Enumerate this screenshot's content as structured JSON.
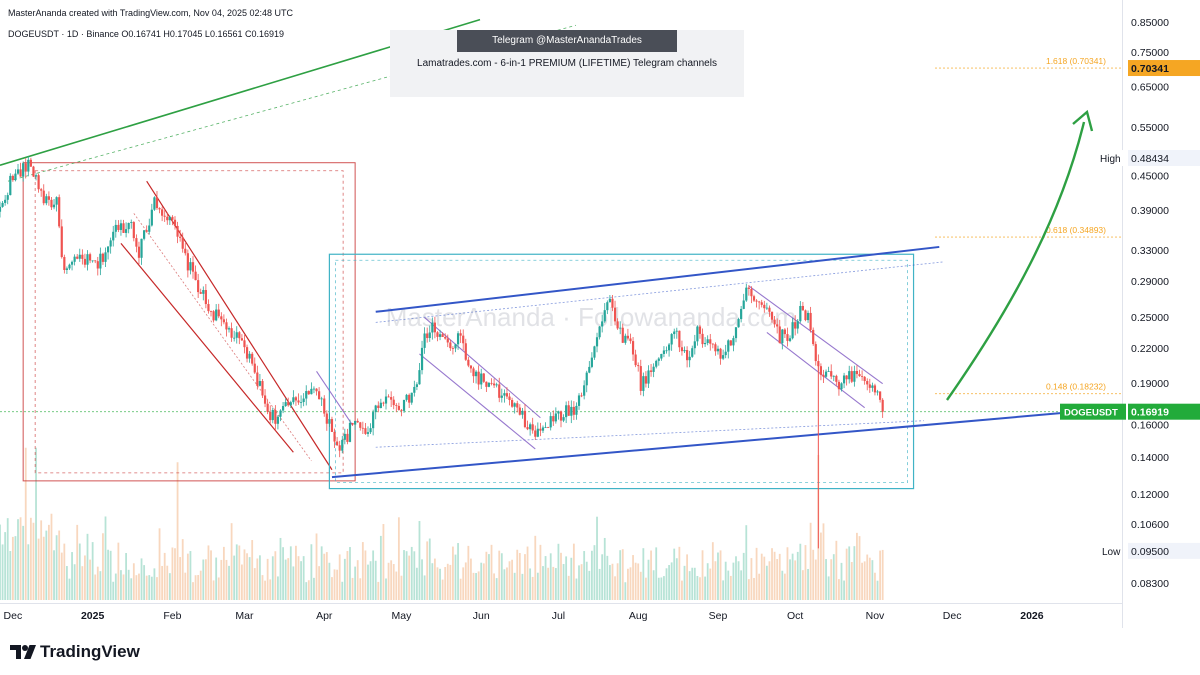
{
  "header": {
    "line1": "MasterAnanda created with TradingView.com, Nov 04, 2025 02:48 UTC",
    "line2": "DOGEUSDT · 1D · Binance  O0.16741  H0.17045  L0.16561  C0.16919"
  },
  "banner": {
    "telegram": "Telegram @MasterAnandaTrades",
    "text": "Lamatrades.com - 6-in-1 PREMIUM (LIFETIME) Telegram channels"
  },
  "watermark": "MasterAnanda · Followananda.com",
  "logo": "TradingView",
  "colors": {
    "up": "#26a69a",
    "down": "#ef5350",
    "channel_blue": "#3356c7",
    "trend_green": "#2ea043",
    "fib_orange": "#f5a623",
    "box_red": "#c62828",
    "box_cyan": "#40b3c6",
    "price_green": "#22ab3a"
  },
  "chart_data": {
    "type": "candlestick",
    "symbol": "DOGEUSDT",
    "interval": "1D",
    "exchange": "Binance",
    "y_scale": "log",
    "y_ticks": [
      "0.85000",
      "0.75000",
      "0.65000",
      "0.55000",
      "0.45000",
      "0.39000",
      "0.33000",
      "0.29000",
      "0.25000",
      "0.22000",
      "0.19000",
      "0.16000",
      "0.14000",
      "0.12000",
      "0.10600",
      "0.08300"
    ],
    "x_ticks": [
      "Dec",
      "2025",
      "Feb",
      "Mar",
      "Apr",
      "May",
      "Jun",
      "Jul",
      "Aug",
      "Sep",
      "Oct",
      "Nov",
      "Dec",
      "2026"
    ],
    "bold_x_ticks": [
      "2025",
      "2026"
    ],
    "labels": {
      "high": {
        "text": "High",
        "value": "0.48434"
      },
      "low": {
        "text": "Low",
        "value": "0.09500"
      },
      "last": {
        "text": "DOGEUSDT",
        "value": "0.16919"
      },
      "fib_target": {
        "text": "1.618 (0.70341)",
        "value": "0.70341"
      }
    },
    "fib_levels": [
      {
        "label": "1.618 (0.70341)",
        "value": 0.70341
      },
      {
        "label": "0.618 (0.34893)",
        "value": 0.34893
      },
      {
        "label": "0.148 (0.18232)",
        "value": 0.18232
      }
    ],
    "ohlc": {
      "open": 0.16741,
      "high": 0.17045,
      "low": 0.16561,
      "close": 0.16919
    },
    "path_anchors": [
      [
        "2024-11-26",
        0.39
      ],
      [
        "2024-11-30",
        0.44
      ],
      [
        "2024-12-04",
        0.46
      ],
      [
        "2024-12-08",
        0.47
      ],
      [
        "2024-12-13",
        0.41
      ],
      [
        "2024-12-18",
        0.4
      ],
      [
        "2024-12-21",
        0.3
      ],
      [
        "2024-12-27",
        0.32
      ],
      [
        "2025-01-03",
        0.31
      ],
      [
        "2025-01-10",
        0.36
      ],
      [
        "2025-01-16",
        0.37
      ],
      [
        "2025-01-19",
        0.33
      ],
      [
        "2025-01-22",
        0.36
      ],
      [
        "2025-01-25",
        0.41
      ],
      [
        "2025-02-02",
        0.36
      ],
      [
        "2025-02-06",
        0.32
      ],
      [
        "2025-02-15",
        0.26
      ],
      [
        "2025-02-22",
        0.24
      ],
      [
        "2025-03-01",
        0.22
      ],
      [
        "2025-03-05",
        0.2
      ],
      [
        "2025-03-10",
        0.17
      ],
      [
        "2025-03-13",
        0.165
      ],
      [
        "2025-03-17",
        0.172
      ],
      [
        "2025-03-23",
        0.178
      ],
      [
        "2025-03-27",
        0.19
      ],
      [
        "2025-04-01",
        0.17
      ],
      [
        "2025-04-07",
        0.145
      ],
      [
        "2025-04-12",
        0.16
      ],
      [
        "2025-04-18",
        0.157
      ],
      [
        "2025-04-23",
        0.18
      ],
      [
        "2025-04-28",
        0.177
      ],
      [
        "2025-05-02",
        0.173
      ],
      [
        "2025-05-07",
        0.19
      ],
      [
        "2025-05-10",
        0.23
      ],
      [
        "2025-05-13",
        0.24
      ],
      [
        "2025-05-20",
        0.22
      ],
      [
        "2025-05-24",
        0.23
      ],
      [
        "2025-05-28",
        0.2
      ],
      [
        "2025-06-03",
        0.19
      ],
      [
        "2025-06-10",
        0.18
      ],
      [
        "2025-06-17",
        0.165
      ],
      [
        "2025-06-22",
        0.153
      ],
      [
        "2025-06-26",
        0.16
      ],
      [
        "2025-07-03",
        0.168
      ],
      [
        "2025-07-08",
        0.172
      ],
      [
        "2025-07-12",
        0.2
      ],
      [
        "2025-07-17",
        0.24
      ],
      [
        "2025-07-21",
        0.27
      ],
      [
        "2025-07-25",
        0.235
      ],
      [
        "2025-07-30",
        0.22
      ],
      [
        "2025-08-02",
        0.19
      ],
      [
        "2025-08-06",
        0.2
      ],
      [
        "2025-08-11",
        0.22
      ],
      [
        "2025-08-15",
        0.235
      ],
      [
        "2025-08-20",
        0.21
      ],
      [
        "2025-08-24",
        0.235
      ],
      [
        "2025-08-29",
        0.22
      ],
      [
        "2025-09-04",
        0.215
      ],
      [
        "2025-09-08",
        0.24
      ],
      [
        "2025-09-13",
        0.285
      ],
      [
        "2025-09-16",
        0.27
      ],
      [
        "2025-09-21",
        0.26
      ],
      [
        "2025-09-25",
        0.23
      ],
      [
        "2025-09-29",
        0.235
      ],
      [
        "2025-10-03",
        0.255
      ],
      [
        "2025-10-06",
        0.255
      ],
      [
        "2025-10-10",
        0.2
      ],
      [
        "2025-10-14",
        0.2
      ],
      [
        "2025-10-18",
        0.185
      ],
      [
        "2025-10-21",
        0.195
      ],
      [
        "2025-10-25",
        0.2
      ],
      [
        "2025-10-28",
        0.195
      ],
      [
        "2025-11-01",
        0.185
      ],
      [
        "2025-11-04",
        0.16919
      ]
    ]
  }
}
